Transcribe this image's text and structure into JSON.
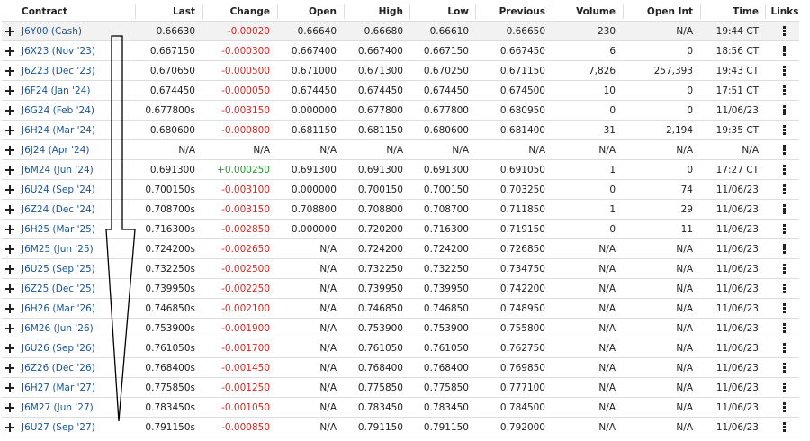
{
  "table": {
    "columns": [
      "Contract",
      "Last",
      "Change",
      "Open",
      "High",
      "Low",
      "Previous",
      "Volume",
      "Open Int",
      "Time",
      "Links"
    ],
    "rows": [
      [
        "J6Y00 (Cash)",
        "0.66630",
        "-0.00020",
        "0.66640",
        "0.66680",
        "0.66610",
        "0.66650",
        "230",
        "N/A",
        "19:44 CT"
      ],
      [
        "J6X23 (Nov '23)",
        "0.667150",
        "-0.000300",
        "0.667400",
        "0.667400",
        "0.667150",
        "0.667450",
        "6",
        "0",
        "18:56 CT"
      ],
      [
        "J6Z23 (Dec '23)",
        "0.670650",
        "-0.000500",
        "0.671000",
        "0.671300",
        "0.670250",
        "0.671150",
        "7,826",
        "257,393",
        "19:43 CT"
      ],
      [
        "J6F24 (Jan '24)",
        "0.674450",
        "-0.000050",
        "0.674450",
        "0.674450",
        "0.674450",
        "0.674500",
        "10",
        "0",
        "17:51 CT"
      ],
      [
        "J6G24 (Feb '24)",
        "0.677800s",
        "-0.003150",
        "0.000000",
        "0.677800",
        "0.677800",
        "0.680950",
        "0",
        "0",
        "11/06/23"
      ],
      [
        "J6H24 (Mar '24)",
        "0.680600",
        "-0.000800",
        "0.681150",
        "0.681150",
        "0.680600",
        "0.681400",
        "31",
        "2,194",
        "19:35 CT"
      ],
      [
        "J6J24 (Apr '24)",
        "N/A",
        "N/A",
        "N/A",
        "N/A",
        "N/A",
        "N/A",
        "N/A",
        "N/A",
        "N/A"
      ],
      [
        "J6M24 (Jun '24)",
        "0.691300",
        "+0.000250",
        "0.691300",
        "0.691300",
        "0.691300",
        "0.691050",
        "1",
        "0",
        "17:27 CT"
      ],
      [
        "J6U24 (Sep '24)",
        "0.700150s",
        "-0.003100",
        "0.000000",
        "0.700150",
        "0.700150",
        "0.703250",
        "0",
        "74",
        "11/06/23"
      ],
      [
        "J6Z24 (Dec '24)",
        "0.708700s",
        "-0.003150",
        "0.708800",
        "0.708800",
        "0.708700",
        "0.711850",
        "1",
        "29",
        "11/06/23"
      ],
      [
        "J6H25 (Mar '25)",
        "0.716300s",
        "-0.002850",
        "0.000000",
        "0.720200",
        "0.716300",
        "0.719150",
        "0",
        "11",
        "11/06/23"
      ],
      [
        "J6M25 (Jun '25)",
        "0.724200s",
        "-0.002650",
        "N/A",
        "0.724200",
        "0.724200",
        "0.726850",
        "N/A",
        "N/A",
        "11/06/23"
      ],
      [
        "J6U25 (Sep '25)",
        "0.732250s",
        "-0.002500",
        "N/A",
        "0.732250",
        "0.732250",
        "0.734750",
        "N/A",
        "N/A",
        "11/06/23"
      ],
      [
        "J6Z25 (Dec '25)",
        "0.739950s",
        "-0.002250",
        "N/A",
        "0.739950",
        "0.739950",
        "0.742200",
        "N/A",
        "N/A",
        "11/06/23"
      ],
      [
        "J6H26 (Mar '26)",
        "0.746850s",
        "-0.002100",
        "N/A",
        "0.746850",
        "0.746850",
        "0.748950",
        "N/A",
        "N/A",
        "11/06/23"
      ],
      [
        "J6M26 (Jun '26)",
        "0.753900s",
        "-0.001900",
        "N/A",
        "0.753900",
        "0.753900",
        "0.755800",
        "N/A",
        "N/A",
        "11/06/23"
      ],
      [
        "J6U26 (Sep '26)",
        "0.761050s",
        "-0.001700",
        "N/A",
        "0.761050",
        "0.761050",
        "0.762750",
        "N/A",
        "N/A",
        "11/06/23"
      ],
      [
        "J6Z26 (Dec '26)",
        "0.768400s",
        "-0.001450",
        "N/A",
        "0.768400",
        "0.768400",
        "0.769850",
        "N/A",
        "N/A",
        "11/06/23"
      ],
      [
        "J6H27 (Mar '27)",
        "0.775850s",
        "-0.001250",
        "N/A",
        "0.775850",
        "0.775850",
        "0.777100",
        "N/A",
        "N/A",
        "11/06/23"
      ],
      [
        "J6M27 (Jun '27)",
        "0.783450s",
        "-0.001050",
        "N/A",
        "0.783450",
        "0.783450",
        "0.784500",
        "N/A",
        "N/A",
        "11/06/23"
      ],
      [
        "J6U27 (Sep '27)",
        "0.791150s",
        "-0.000850",
        "N/A",
        "0.791150",
        "0.791150",
        "0.792000",
        "N/A",
        "N/A",
        "11/06/23"
      ]
    ]
  }
}
